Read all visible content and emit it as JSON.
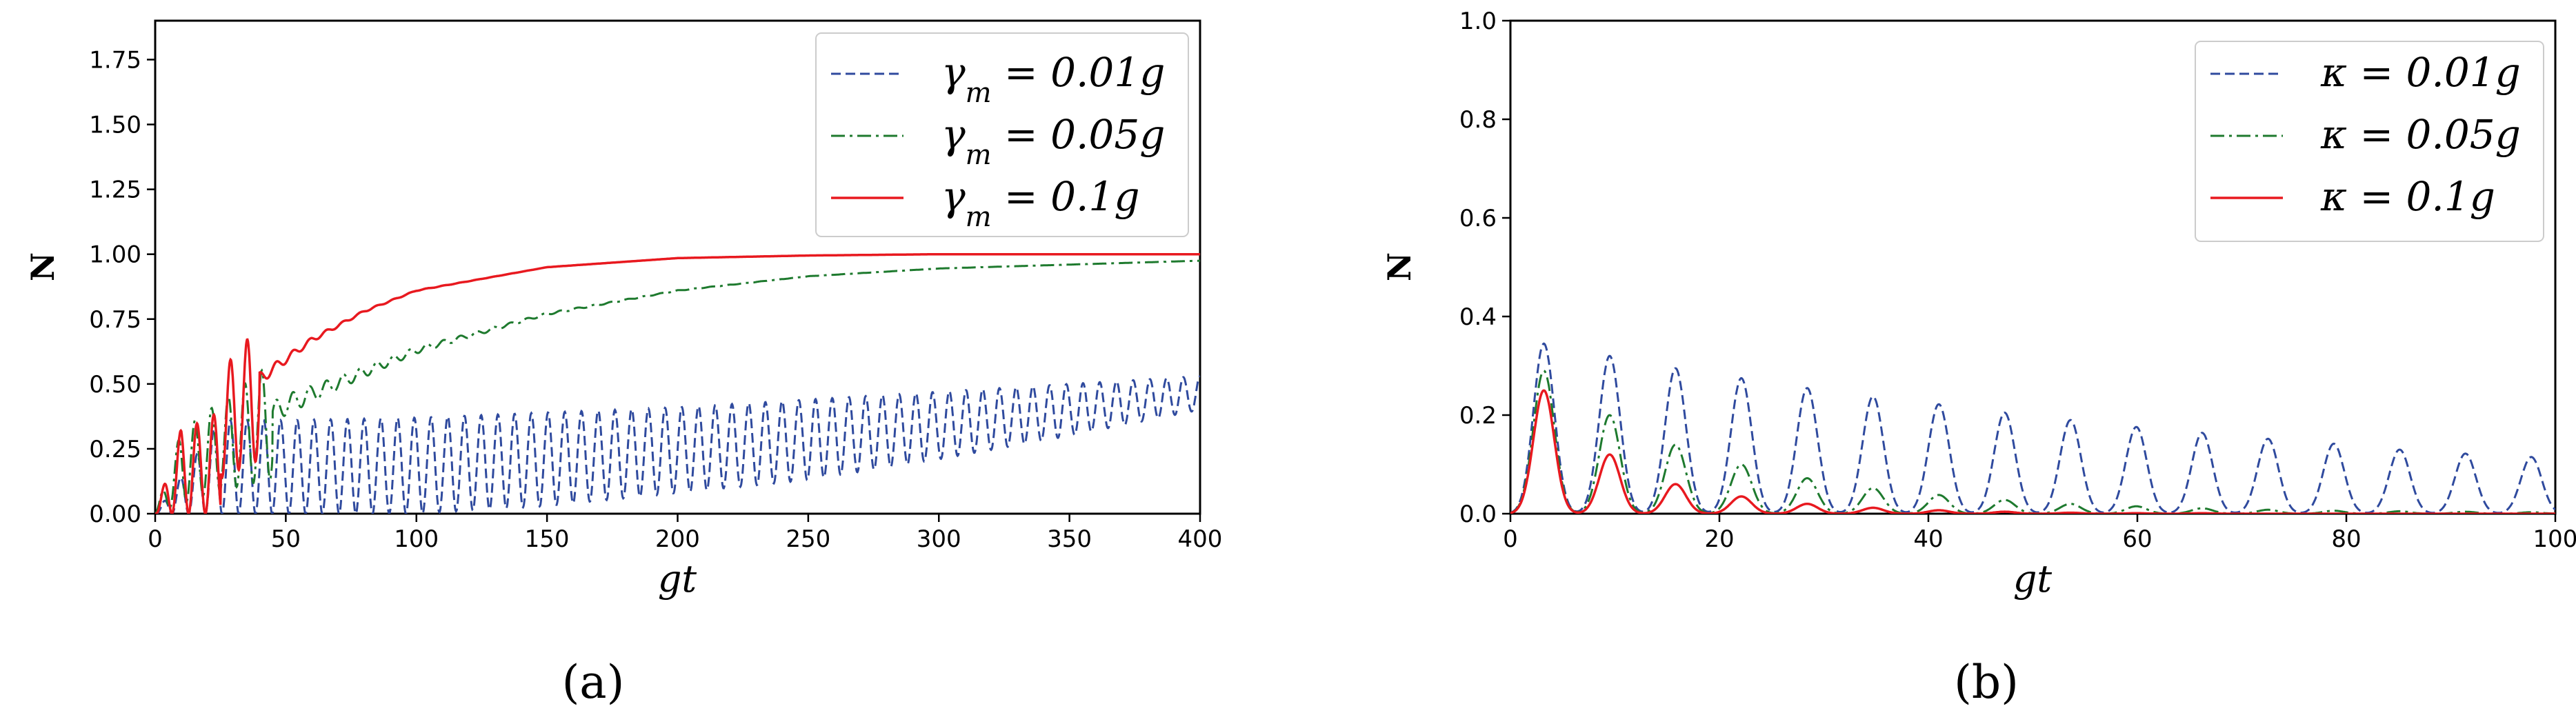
{
  "chart_data": [
    {
      "type": "line",
      "caption": "(a)",
      "xlabel": "gt",
      "ylabel": "N",
      "xlim": [
        0,
        400
      ],
      "ylim": [
        0,
        1.9
      ],
      "xticks": [
        "0",
        "50",
        "100",
        "150",
        "200",
        "250",
        "300",
        "350",
        "400"
      ],
      "yticks": [
        "0.00",
        "0.25",
        "0.50",
        "0.75",
        "1.00",
        "1.25",
        "1.50",
        "1.75"
      ],
      "legend_position": "top-right",
      "series": [
        {
          "name": "γm = 0.01g",
          "legend": "γ_m = 0.01g",
          "color": "#2f4a9e",
          "dash": "dashed",
          "x": [
            0,
            25,
            50,
            100,
            150,
            200,
            250,
            300,
            350,
            400
          ],
          "osc_min": [
            0,
            0.0,
            0.0,
            0.0,
            0.03,
            0.08,
            0.13,
            0.21,
            0.3,
            0.4
          ],
          "osc_max": [
            0,
            0.36,
            0.36,
            0.37,
            0.39,
            0.41,
            0.44,
            0.47,
            0.5,
            0.53
          ],
          "osc_period": 6.4
        },
        {
          "name": "γm = 0.05g",
          "legend": "γ_m = 0.05g",
          "color": "#1e7a2e",
          "dash": "dashdot",
          "x": [
            0,
            20,
            50,
            100,
            150,
            200,
            250,
            300,
            350,
            400
          ],
          "y": [
            0,
            0.22,
            0.42,
            0.63,
            0.77,
            0.86,
            0.915,
            0.945,
            0.96,
            0.975
          ]
        },
        {
          "name": "γm = 0.1g",
          "legend": "γ_m = 0.1g",
          "color": "#e8191f",
          "dash": "solid",
          "x": [
            0,
            20,
            40,
            60,
            80,
            100,
            150,
            200,
            250,
            300,
            400
          ],
          "y": [
            0,
            0.28,
            0.52,
            0.67,
            0.78,
            0.86,
            0.95,
            0.985,
            0.995,
            1.0,
            1.0
          ]
        }
      ]
    },
    {
      "type": "line",
      "caption": "(b)",
      "xlabel": "gt",
      "ylabel": "N",
      "xlim": [
        0,
        100
      ],
      "ylim": [
        0,
        1.0
      ],
      "xticks": [
        "0",
        "20",
        "40",
        "60",
        "80",
        "100"
      ],
      "yticks": [
        "0.0",
        "0.2",
        "0.4",
        "0.6",
        "0.8",
        "1.0"
      ],
      "legend_position": "top-right",
      "peak_times": [
        3.2,
        9.5,
        15.8,
        22.1,
        28.4,
        34.7,
        41.0,
        47.3,
        53.6,
        59.9,
        66.2,
        72.5,
        78.8,
        85.1,
        91.4,
        97.7
      ],
      "series": [
        {
          "name": "κ = 0.01g",
          "legend": "κ = 0.01g",
          "color": "#2f4a9e",
          "dash": "dashed",
          "peaks": [
            0.345,
            0.32,
            0.295,
            0.275,
            0.255,
            0.238,
            0.222,
            0.205,
            0.19,
            0.176,
            0.164,
            0.152,
            0.142,
            0.13,
            0.122,
            0.115
          ]
        },
        {
          "name": "κ = 0.05g",
          "legend": "κ = 0.05g",
          "color": "#1e7a2e",
          "dash": "dashdot",
          "peaks": [
            0.29,
            0.2,
            0.14,
            0.1,
            0.072,
            0.052,
            0.038,
            0.028,
            0.02,
            0.015,
            0.011,
            0.008,
            0.006,
            0.005,
            0.004,
            0.003
          ]
        },
        {
          "name": "κ = 0.1g",
          "legend": "κ = 0.1g",
          "color": "#e8191f",
          "dash": "solid",
          "peaks": [
            0.25,
            0.12,
            0.06,
            0.035,
            0.02,
            0.012,
            0.007,
            0.004,
            0.002,
            0.001,
            0.001,
            0.0,
            0.0,
            0.0,
            0.0,
            0.0
          ]
        }
      ]
    }
  ]
}
